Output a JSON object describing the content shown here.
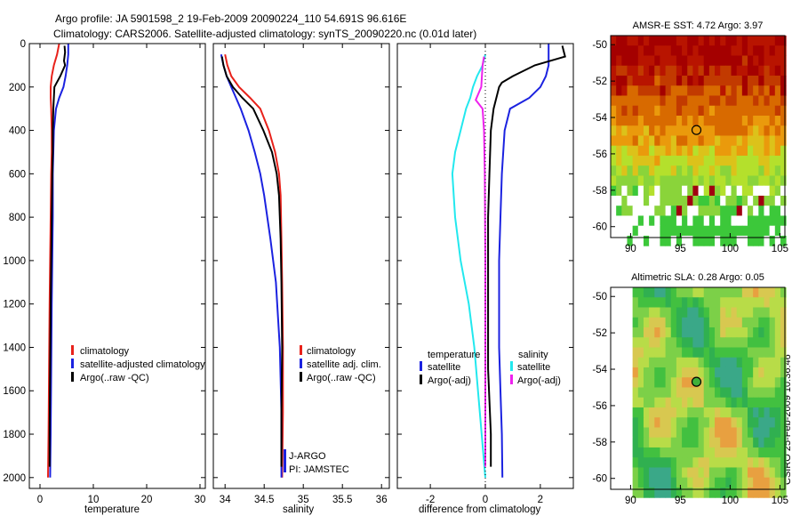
{
  "header": {
    "line1": "Argo profile: JA 5901598_2 19-Feb-2009 20090224_110 54.691S 96.616E",
    "line2": "Climatology: CARS2006. Satellite-adjusted climatology: synTS_20090220.nc (0.01d later)"
  },
  "footer": {
    "stamp": "CSIRO 25-Feb-2009 10:36:46"
  },
  "colors": {
    "climatology": "#e8221b",
    "satellite": "#1b22e0",
    "argo": "#000000",
    "sat_diff_temp": "#1b22e0",
    "sat_diff_sal": "#22e8ee",
    "argo_diff_sal": "#ee22ee"
  },
  "chart_data": [
    {
      "id": "temperature",
      "type": "line",
      "xlabel": "temperature",
      "ylabel": "",
      "xlim": [
        -2,
        31
      ],
      "ylim": [
        2050,
        0
      ],
      "xticks": [
        0,
        10,
        20,
        30
      ],
      "xtick_labels": [
        "0",
        "10",
        "20",
        "30"
      ],
      "yticks": [
        0,
        200,
        400,
        600,
        800,
        1000,
        1200,
        1400,
        1600,
        1800,
        2000
      ],
      "ytick_labels": [
        "0",
        "200",
        "400",
        "600",
        "800",
        "1000",
        "1200",
        "1400",
        "1600",
        "1800",
        "2000"
      ],
      "legend": [
        "climatology",
        "satellite-adjusted climatology",
        "Argo(..raw -QC)"
      ],
      "series": [
        {
          "name": "climatology",
          "color": "#e8221b",
          "x": [
            3.6,
            3.2,
            2.6,
            2.2,
            2.0,
            2.0,
            2.1,
            2.2,
            2.2,
            2.1,
            2.0,
            1.9,
            1.8,
            1.7,
            1.6,
            1.5
          ],
          "y": [
            0,
            50,
            100,
            150,
            200,
            250,
            300,
            400,
            500,
            600,
            800,
            1000,
            1200,
            1500,
            1800,
            2000
          ]
        },
        {
          "name": "satellite-adjusted climatology",
          "color": "#1b22e0",
          "x": [
            5.3,
            5.3,
            5.1,
            4.8,
            4.4,
            3.6,
            3.0,
            2.6,
            2.5,
            2.4,
            2.4,
            2.3,
            2.2,
            2.1,
            2.0,
            1.9
          ],
          "y": [
            0,
            50,
            100,
            150,
            200,
            250,
            300,
            400,
            500,
            600,
            800,
            1000,
            1200,
            1500,
            1800,
            2000
          ]
        },
        {
          "name": "Argo(..raw -QC)",
          "color": "#000000",
          "x": [
            4.6,
            4.7,
            4.6,
            4.5,
            4.7,
            3.8,
            2.7,
            2.5,
            2.4,
            2.4,
            2.3,
            2.2,
            2.1,
            2.0,
            1.9,
            1.8,
            1.8
          ],
          "y": [
            10,
            40,
            60,
            80,
            100,
            150,
            200,
            300,
            400,
            500,
            600,
            800,
            1000,
            1200,
            1500,
            1800,
            1950
          ]
        }
      ]
    },
    {
      "id": "salinity",
      "type": "line",
      "xlabel": "salinity",
      "ylabel": "",
      "xlim": [
        33.85,
        36.1
      ],
      "ylim": [
        2050,
        0
      ],
      "xticks": [
        34,
        34.5,
        35,
        35.5,
        36
      ],
      "xtick_labels": [
        "34",
        "34.5",
        "35",
        "35.5",
        "36"
      ],
      "legend": [
        "climatology",
        "satellite adj. clim.",
        "Argo(..raw -QC)"
      ],
      "annotations": [
        "J-ARGO",
        "PI: JAMSTEC"
      ],
      "series": [
        {
          "name": "climatology",
          "color": "#e8221b",
          "x": [
            34.0,
            34.03,
            34.08,
            34.18,
            34.32,
            34.45,
            34.56,
            34.64,
            34.69,
            34.71,
            34.72,
            34.73,
            34.74,
            34.74,
            34.73
          ],
          "y": [
            50,
            100,
            150,
            200,
            250,
            300,
            400,
            500,
            600,
            700,
            900,
            1100,
            1400,
            1700,
            2000
          ]
        },
        {
          "name": "satellite adj. clim.",
          "color": "#1b22e0",
          "x": [
            33.95,
            33.98,
            34.02,
            34.08,
            34.14,
            34.2,
            34.3,
            34.38,
            34.45,
            34.5,
            34.58,
            34.65,
            34.7,
            34.72,
            34.72
          ],
          "y": [
            50,
            100,
            150,
            200,
            250,
            300,
            400,
            500,
            600,
            700,
            900,
            1100,
            1400,
            1700,
            2000
          ]
        },
        {
          "name": "Argo(..raw -QC)",
          "color": "#000000",
          "x": [
            33.96,
            33.98,
            34.02,
            34.1,
            34.22,
            34.36,
            34.49,
            34.6,
            34.66,
            34.69,
            34.71,
            34.72,
            34.73,
            34.72,
            34.72
          ],
          "y": [
            60,
            100,
            150,
            200,
            250,
            300,
            400,
            500,
            600,
            700,
            900,
            1100,
            1400,
            1700,
            1950
          ]
        }
      ]
    },
    {
      "id": "difference",
      "type": "line",
      "xlabel": "difference from climatology",
      "ylabel": "",
      "xlim": [
        -3.2,
        3.2
      ],
      "ylim": [
        2050,
        0
      ],
      "xticks": [
        -2,
        0,
        2
      ],
      "xtick_labels": [
        "-2",
        "0",
        "2"
      ],
      "legend_groups": [
        {
          "title": "temperature",
          "items": [
            "satellite",
            "Argo(-adj)"
          ]
        },
        {
          "title": "salinity",
          "items": [
            "satellite",
            "Argo(-adj)"
          ]
        }
      ],
      "series": [
        {
          "name": "temperature satellite",
          "color": "#1b22e0",
          "x": [
            2.3,
            2.3,
            2.3,
            2.2,
            2.0,
            1.6,
            0.9,
            0.7,
            0.6,
            0.55,
            0.5,
            0.5,
            0.5,
            0.55,
            0.6,
            0.62
          ],
          "y": [
            0,
            50,
            100,
            150,
            200,
            250,
            300,
            400,
            600,
            800,
            1000,
            1200,
            1400,
            1600,
            1800,
            2000
          ]
        },
        {
          "name": "temperature Argo(-adj)",
          "color": "#000000",
          "x": [
            2.8,
            2.9,
            1.8,
            1.0,
            0.6,
            0.5,
            0.4,
            0.3,
            0.2,
            0.15,
            0.1,
            0.1,
            0.1,
            0.1,
            0.2,
            0.2
          ],
          "y": [
            10,
            60,
            100,
            150,
            180,
            200,
            250,
            300,
            400,
            600,
            800,
            1000,
            1200,
            1500,
            1800,
            1950
          ]
        },
        {
          "name": "salinity satellite",
          "color": "#22e8ee",
          "x": [
            0.0,
            -0.1,
            -0.3,
            -0.45,
            -0.55,
            -0.7,
            -0.9,
            -1.1,
            -1.2,
            -1.1,
            -0.9,
            -0.6,
            -0.4,
            -0.2,
            0.0
          ],
          "y": [
            50,
            100,
            150,
            200,
            250,
            300,
            400,
            500,
            600,
            800,
            1000,
            1200,
            1400,
            1700,
            2000
          ]
        },
        {
          "name": "salinity Argo(-adj)",
          "color": "#ee22ee",
          "x": [
            -0.05,
            -0.1,
            -0.15,
            -0.35,
            -0.1,
            -0.05,
            -0.02,
            -0.01,
            0.0,
            0.0,
            0.0
          ],
          "y": [
            60,
            100,
            200,
            260,
            300,
            400,
            600,
            800,
            1000,
            1500,
            1950
          ]
        }
      ]
    },
    {
      "id": "sst_map",
      "type": "heatmap",
      "title": "AMSR-E SST: 4.72 Argo: 3.97",
      "xlim": [
        88,
        105.5
      ],
      "ylim": [
        -60.6,
        -49.5
      ],
      "xticks": [
        90,
        95,
        100,
        105
      ],
      "xtick_labels": [
        "90",
        "95",
        "100",
        "105"
      ],
      "yticks": [
        -50,
        -52,
        -54,
        -56,
        -58,
        -60
      ],
      "ytick_labels": [
        "-50",
        "-52",
        "-54",
        "-56",
        "-58",
        "-60"
      ],
      "argo_position": [
        96.616,
        -54.691
      ]
    },
    {
      "id": "sla_map",
      "type": "heatmap",
      "title": "Altimetric SLA: 0.28 Argo: 0.05",
      "xlim": [
        88,
        105.5
      ],
      "ylim": [
        -60.6,
        -49.5
      ],
      "xticks": [
        90,
        95,
        100,
        105
      ],
      "xtick_labels": [
        "90",
        "95",
        "100",
        "105"
      ],
      "yticks": [
        -50,
        -52,
        -54,
        -56,
        -58,
        -60
      ],
      "ytick_labels": [
        "-50",
        "-52",
        "-54",
        "-56",
        "-58",
        "-60"
      ],
      "argo_position": [
        96.616,
        -54.691
      ]
    }
  ]
}
